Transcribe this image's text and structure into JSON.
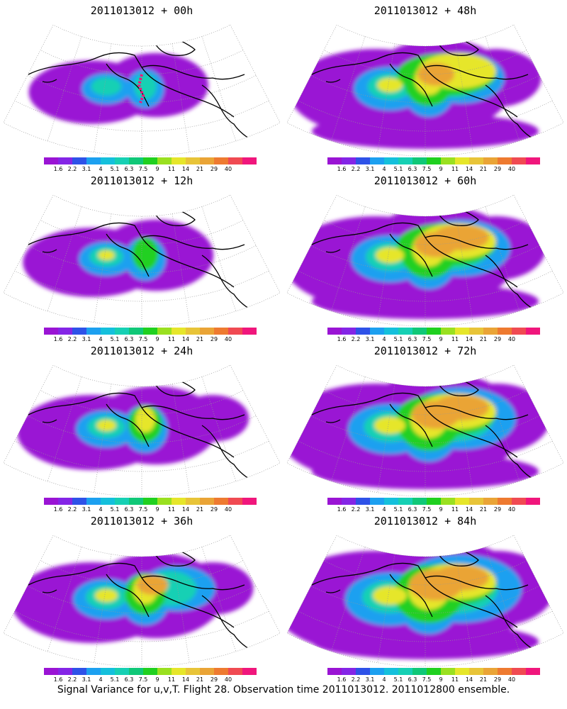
{
  "figure": {
    "footer": "Signal Variance for u,v,T. Flight 28. Observation time 2011013012. 2011012800 ensemble."
  },
  "colorbar": {
    "colors": [
      "#9a14d4",
      "#8425e6",
      "#2e52e8",
      "#1ca0f0",
      "#14c0dc",
      "#16d0b4",
      "#10c878",
      "#20d020",
      "#9ae020",
      "#e6e62a",
      "#e8c438",
      "#eaa436",
      "#ee7a30",
      "#f04a52",
      "#f0167c"
    ],
    "tick_labels": [
      "1.6",
      "2.2",
      "3.1",
      "4",
      "5.1",
      "6.3",
      "7.5",
      "9",
      "11",
      "14",
      "21",
      "29",
      "40"
    ]
  },
  "panels": [
    {
      "title": "2011013012 + 00h",
      "intensity": 0
    },
    {
      "title": "2011013012 + 48h",
      "intensity": 4
    },
    {
      "title": "2011013012 + 12h",
      "intensity": 1
    },
    {
      "title": "2011013012 + 60h",
      "intensity": 5
    },
    {
      "title": "2011013012 + 24h",
      "intensity": 2
    },
    {
      "title": "2011013012 + 72h",
      "intensity": 6
    },
    {
      "title": "2011013012 + 36h",
      "intensity": 3
    },
    {
      "title": "2011013012 + 84h",
      "intensity": 7
    }
  ]
}
